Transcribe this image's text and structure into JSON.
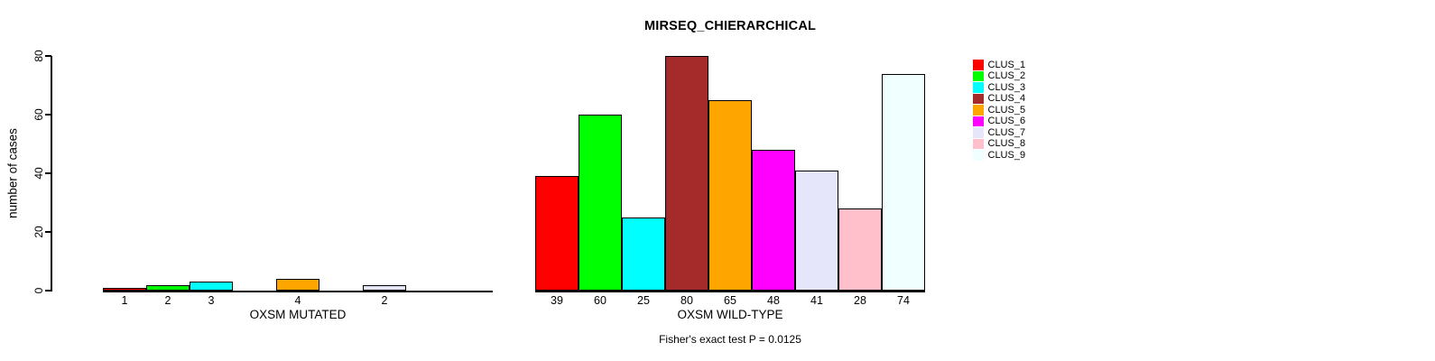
{
  "background_color": "#FFFFFF",
  "chart_data": {
    "type": "bar",
    "title": "MIRSEQ_CHIERARCHICAL",
    "ylabel": "number of cases",
    "ylim": [
      0,
      80
    ],
    "yticks": [
      0,
      20,
      40,
      60,
      80
    ],
    "grid": false,
    "legend_position": "right-outside",
    "categories": [
      "CLUS_1",
      "CLUS_2",
      "CLUS_3",
      "CLUS_4",
      "CLUS_5",
      "CLUS_6",
      "CLUS_7",
      "CLUS_8",
      "CLUS_9"
    ],
    "colors": [
      "#FF0000",
      "#00FF00",
      "#00FFFF",
      "#A52A2A",
      "#FFA500",
      "#FF00FF",
      "#E6E6FA",
      "#FFC0CB",
      "#F0FFFF"
    ],
    "bar_border_color": "#000000",
    "groups": [
      {
        "id": "mutated",
        "xlabel": "OXSM MUTATED",
        "values": [
          1,
          2,
          3,
          0,
          4,
          0,
          2,
          0,
          0
        ],
        "bar_value_labels": [
          "1",
          "2",
          "3",
          "",
          "4",
          "",
          "2",
          "",
          ""
        ]
      },
      {
        "id": "wild-type",
        "xlabel": "OXSM WILD-TYPE",
        "values": [
          39,
          60,
          25,
          80,
          65,
          48,
          41,
          28,
          74
        ],
        "bar_value_labels": [
          "39",
          "60",
          "25",
          "80",
          "65",
          "48",
          "41",
          "28",
          "74"
        ]
      }
    ],
    "annotation": "Fisher's exact test P = 0.0125",
    "legend_entries": [
      "CLUS_1",
      "CLUS_2",
      "CLUS_3",
      "CLUS_4",
      "CLUS_5",
      "CLUS_6",
      "CLUS_7",
      "CLUS_8",
      "CLUS_9"
    ]
  }
}
